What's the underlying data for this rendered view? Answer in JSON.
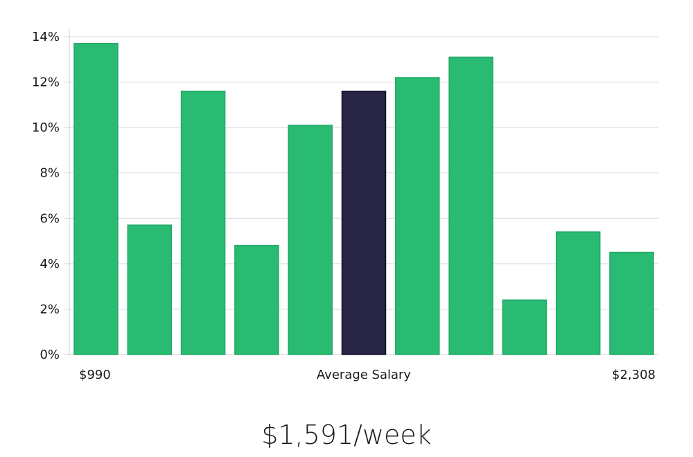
{
  "chart_data": {
    "type": "bar",
    "values": [
      13.7,
      5.7,
      11.6,
      4.8,
      10.1,
      11.6,
      12.2,
      13.1,
      2.4,
      5.4,
      4.5
    ],
    "highlight_index": 5,
    "y_ticks": [
      "0%",
      "2%",
      "4%",
      "6%",
      "8%",
      "10%",
      "12%",
      "14%"
    ],
    "ylim": [
      0,
      14
    ],
    "x_labels": {
      "left": "$990",
      "center": "Average Salary",
      "right": "$2,308"
    },
    "grid": true,
    "colors": {
      "bar": "#2abb73",
      "bar_stroke": "#22a866",
      "highlight": "#272446",
      "highlight_stroke": "#111028"
    }
  },
  "headline": "$1,591/week"
}
